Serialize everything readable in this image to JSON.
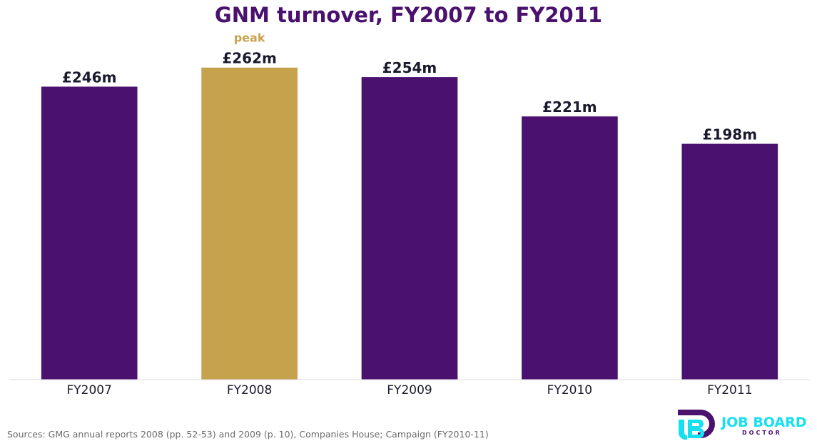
{
  "colors": {
    "title": "#4a116e",
    "bar": "#4a116e",
    "highlight": "#c6a24c",
    "value_label": "#1a1a2e",
    "axis_line": "#dddddd",
    "tick_label": "#1a1a2e",
    "source_text": "#6b6b6b",
    "logo_purple": "#4a116e",
    "logo_cyan": "#16e0f0"
  },
  "chart_data": {
    "type": "bar",
    "title": "GNM turnover, FY2007 to FY2011",
    "xlabel": "",
    "ylabel": "",
    "categories": [
      "FY2007",
      "FY2008",
      "FY2009",
      "FY2010",
      "FY2011"
    ],
    "values": [
      246,
      262,
      254,
      221,
      198
    ],
    "value_labels": [
      "£246m",
      "£262m",
      "£254m",
      "£221m",
      "£198m"
    ],
    "ylim": [
      0,
      290
    ],
    "grid": false,
    "highlight_index": 1,
    "annotation": "peak"
  },
  "source": "Sources: GMG annual reports 2008 (pp. 52-53) and 2009 (p. 10), Companies House; Campaign (FY2010-11)",
  "logo": {
    "mark": "JB",
    "line1": "JOB BOARD",
    "line2": "DOCTOR"
  }
}
